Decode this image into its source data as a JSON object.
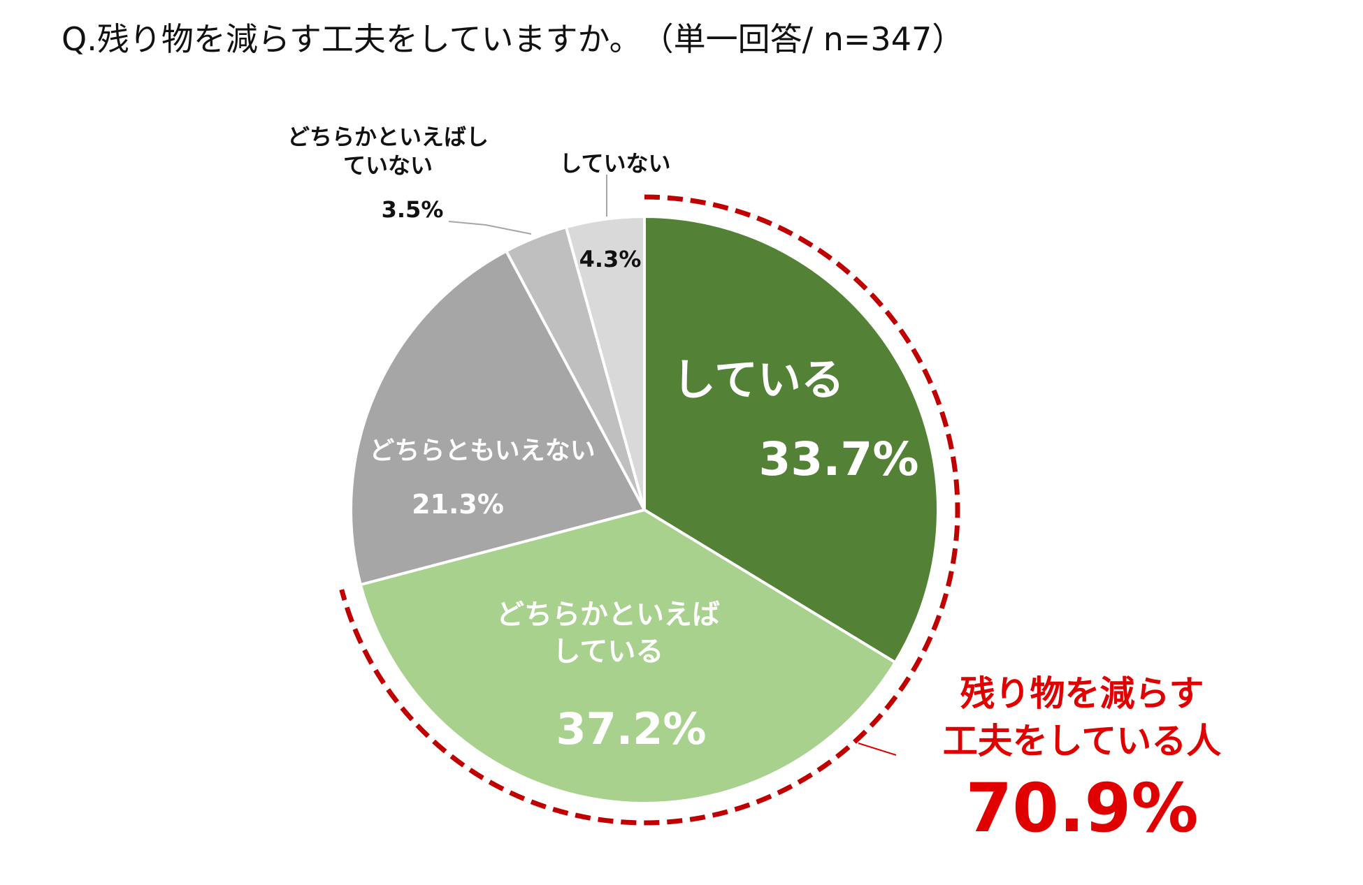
{
  "chart_data": {
    "type": "pie",
    "title": "Q.残り物を減らす工夫をしていますか。　（単一回答/ n=347）",
    "start": "12 o'clock, clockwise",
    "slices": [
      {
        "label": "している",
        "label_lines": [
          "している"
        ],
        "value": 33.7,
        "value_label": "33.7%",
        "color": "#538135"
      },
      {
        "label": "どちらかといえばしている",
        "label_lines": [
          "どちらかといえば",
          "している"
        ],
        "value": 37.2,
        "value_label": "37.2%",
        "color": "#a9d18e"
      },
      {
        "label": "どちらともいえない",
        "label_lines": [
          "どちらともいえない"
        ],
        "value": 21.3,
        "value_label": "21.3%",
        "color": "#a6a6a6"
      },
      {
        "label": "どちらかといえばしていない",
        "label_lines": [
          "どちらかといえばし",
          "ていない"
        ],
        "value": 3.5,
        "value_label": "3.5%",
        "color": "#bfbfbf"
      },
      {
        "label": "していない",
        "label_lines": [
          "していない"
        ],
        "value": 4.3,
        "value_label": "4.3%",
        "color": "#d9d9d9"
      }
    ],
    "callout": {
      "lines": [
        "残り物を減らす",
        "工夫をしている人"
      ],
      "value": 70.9,
      "value_label": "70.9%",
      "color": "#e00000",
      "arc_color": "#c00000",
      "covers": [
        "している",
        "どちらかといえばしている"
      ]
    }
  }
}
